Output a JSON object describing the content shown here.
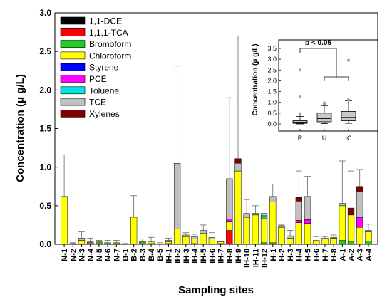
{
  "chart_data": [
    {
      "type": "bar",
      "stacked": true,
      "error_bars": true,
      "xlabel": "Sampling sites",
      "ylabel": "Concentration (μ g/L)",
      "ylim": [
        0,
        3.0
      ],
      "yticks": [
        "0.0",
        "0.5",
        "1.0",
        "1.5",
        "2.0",
        "2.5",
        "3.0"
      ],
      "legend_position": "top-left",
      "categories": [
        "N-1",
        "N-2",
        "N-3",
        "N-4",
        "N-5",
        "N-6",
        "N-7",
        "B-1",
        "B-2",
        "B-3",
        "B-4",
        "B-5",
        "IH-1",
        "IH-2",
        "IH-3",
        "IH-4",
        "IH-5",
        "IH-6",
        "IH-7",
        "IH-8",
        "IH-9",
        "IH-10",
        "IH-11",
        "IH-12",
        "H-1",
        "H-2",
        "H-3",
        "H-4",
        "H-5",
        "H-6",
        "H-7",
        "H-8",
        "A-1",
        "A-2",
        "A-3",
        "A-4"
      ],
      "series": [
        {
          "name": "1,1-DCE",
          "color": "#000000",
          "values": [
            0,
            0,
            0,
            0,
            0,
            0,
            0,
            0,
            0,
            0,
            0,
            0,
            0,
            0,
            0,
            0,
            0,
            0,
            0,
            0,
            0,
            0,
            0,
            0,
            0,
            0,
            0,
            0,
            0,
            0,
            0,
            0,
            0,
            0,
            0,
            0
          ]
        },
        {
          "name": "1,1,1-TCA",
          "color": "#ff0000",
          "values": [
            0,
            0,
            0,
            0,
            0,
            0,
            0,
            0,
            0,
            0,
            0,
            0,
            0,
            0,
            0,
            0,
            0,
            0,
            0,
            0.18,
            0,
            0,
            0,
            0,
            0,
            0,
            0,
            0,
            0,
            0,
            0,
            0,
            0,
            0,
            0,
            0
          ]
        },
        {
          "name": "Bromoform",
          "color": "#22cc22",
          "values": [
            0,
            0,
            0,
            0.01,
            0.02,
            0.02,
            0.01,
            0,
            0,
            0.02,
            0.01,
            0,
            0.01,
            0,
            0,
            0.01,
            0,
            0,
            0.01,
            0,
            0,
            0,
            0,
            0.02,
            0.02,
            0,
            0,
            0,
            0,
            0,
            0,
            0,
            0.05,
            0.03,
            0,
            0.04
          ]
        },
        {
          "name": "Chloroform",
          "color": "#ffff00",
          "values": [
            0.62,
            0.01,
            0.05,
            0.01,
            0.01,
            0,
            0.01,
            0,
            0.35,
            0.01,
            0.02,
            0,
            0.02,
            0.2,
            0.1,
            0.06,
            0.14,
            0.07,
            0.02,
            0.12,
            0.95,
            0.35,
            0.38,
            0.32,
            0.53,
            0.22,
            0.08,
            0.28,
            0.27,
            0.04,
            0.07,
            0.08,
            0.45,
            0.35,
            0.22,
            0.12
          ]
        },
        {
          "name": "Styrene",
          "color": "#0000ff",
          "values": [
            0,
            0,
            0,
            0,
            0,
            0,
            0,
            0,
            0,
            0,
            0,
            0,
            0,
            0,
            0,
            0,
            0,
            0,
            0,
            0,
            0,
            0,
            0,
            0,
            0,
            0,
            0,
            0,
            0,
            0,
            0,
            0,
            0,
            0,
            0,
            0
          ]
        },
        {
          "name": "PCE",
          "color": "#ff00ff",
          "values": [
            0,
            0,
            0,
            0,
            0,
            0,
            0,
            0,
            0,
            0,
            0,
            0,
            0,
            0,
            0,
            0,
            0,
            0,
            0,
            0.03,
            0,
            0,
            0,
            0,
            0,
            0,
            0,
            0.03,
            0.05,
            0,
            0,
            0,
            0,
            0,
            0.13,
            0
          ]
        },
        {
          "name": "Toluene",
          "color": "#00e5e5",
          "values": [
            0,
            0,
            0,
            0,
            0,
            0,
            0,
            0,
            0,
            0,
            0,
            0,
            0,
            0,
            0,
            0,
            0,
            0,
            0,
            0,
            0,
            0,
            0,
            0.03,
            0,
            0,
            0,
            0,
            0,
            0,
            0,
            0,
            0,
            0,
            0,
            0
          ]
        },
        {
          "name": "TCE",
          "color": "#c0c0c0",
          "values": [
            0,
            0,
            0.03,
            0.01,
            0,
            0,
            0,
            0.01,
            0,
            0.01,
            0,
            0,
            0.02,
            0.85,
            0.02,
            0.03,
            0.04,
            0.02,
            0.01,
            0.52,
            0.1,
            0.05,
            0.02,
            0.03,
            0.07,
            0.02,
            0.03,
            0.25,
            0.3,
            0.01,
            0.01,
            0.01,
            0.03,
            0,
            0.33,
            0.02
          ]
        },
        {
          "name": "Xylenes",
          "color": "#800000",
          "values": [
            0,
            0,
            0,
            0,
            0,
            0,
            0,
            0,
            0,
            0,
            0,
            0,
            0,
            0,
            0,
            0,
            0,
            0,
            0,
            0,
            0.06,
            0,
            0,
            0,
            0,
            0,
            0,
            0.05,
            0,
            0,
            0,
            0,
            0,
            0.09,
            0.07,
            0
          ]
        }
      ],
      "error_upper": [
        1.16,
        0.02,
        0.16,
        0.08,
        0.05,
        0.05,
        0.05,
        0.04,
        0.63,
        0.07,
        0.09,
        0.02,
        0.08,
        2.31,
        0.15,
        0.13,
        0.25,
        0.15,
        0.04,
        1.9,
        2.7,
        0.58,
        0.5,
        0.52,
        0.78,
        0.25,
        0.18,
        0.95,
        0.88,
        0.1,
        0.1,
        0.12,
        1.08,
        0.95,
        0.97,
        0.26
      ]
    },
    {
      "type": "box",
      "ylabel": "Concentration (μ g/L)",
      "ylim": [
        0,
        3.5
      ],
      "yticks": [
        "0.0",
        "0.5",
        "1.0",
        "1.5",
        "2.0",
        "2.5",
        "3.0",
        "3.5"
      ],
      "categories": [
        "R",
        "U",
        "IC"
      ],
      "boxes": [
        {
          "name": "R",
          "min": 0.0,
          "q1": 0.03,
          "median": 0.08,
          "q3": 0.15,
          "max": 0.35,
          "outliers": [
            0.42,
            0.48,
            1.25,
            2.5
          ]
        },
        {
          "name": "U",
          "min": 0.02,
          "q1": 0.1,
          "median": 0.25,
          "q3": 0.5,
          "max": 0.85,
          "outliers": [
            0.92,
            0.98
          ]
        },
        {
          "name": "IC",
          "min": 0.03,
          "q1": 0.15,
          "median": 0.3,
          "q3": 0.58,
          "max": 1.08,
          "outliers": [
            1.12,
            2.95
          ]
        }
      ],
      "annotation": "p < 0.05"
    }
  ]
}
